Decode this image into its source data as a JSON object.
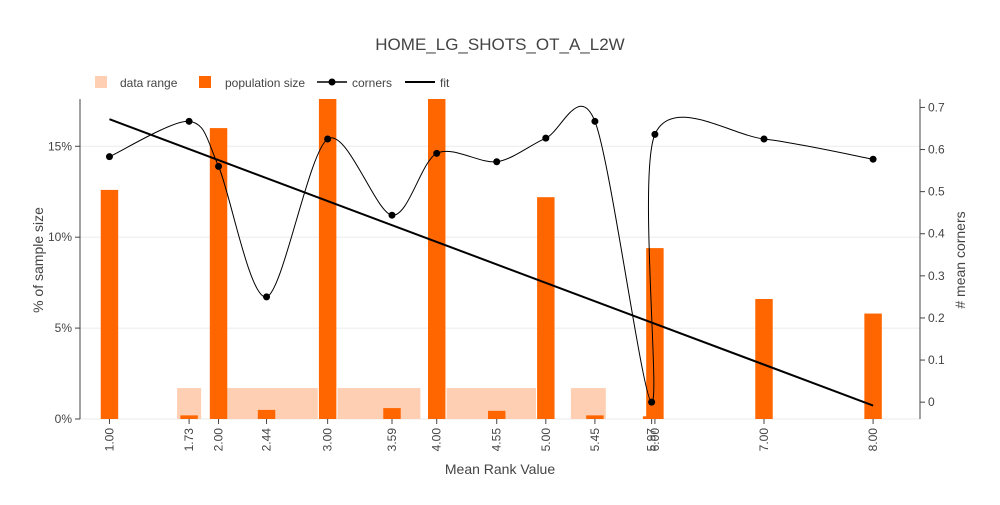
{
  "chart_data": {
    "type": "bar",
    "title": "HOME_LG_SHOTS_OT_A_L2W",
    "xlabel": "Mean Rank Value",
    "ylabel": "% of sample size",
    "y2label": "# mean corners",
    "xlim": [
      0.73,
      8.43
    ],
    "ylim": [
      0,
      17.6
    ],
    "y2lim": [
      -0.04,
      0.72
    ],
    "legend_position": "top-left",
    "colors": {
      "data_range": "#ffcfb3",
      "population": "#ff6600",
      "corners": "#000000",
      "fit": "#000000",
      "grid": "#ebebeb"
    },
    "legend": [
      {
        "key": "data_range",
        "label": "data range",
        "symbol": "square-light"
      },
      {
        "key": "population",
        "label": "population size",
        "symbol": "square"
      },
      {
        "key": "corners",
        "label": "corners",
        "symbol": "line-marker"
      },
      {
        "key": "fit",
        "label": "fit",
        "symbol": "line"
      }
    ],
    "yticks": [
      {
        "value": 0,
        "label": "0%"
      },
      {
        "value": 5,
        "label": "5%"
      },
      {
        "value": 10,
        "label": "10%"
      },
      {
        "value": 15,
        "label": "15%"
      }
    ],
    "y2ticks": [
      {
        "value": 0,
        "label": "0"
      },
      {
        "value": 0.1,
        "label": "0.1"
      },
      {
        "value": 0.2,
        "label": "0.2"
      },
      {
        "value": 0.3,
        "label": "0.3"
      },
      {
        "value": 0.4,
        "label": "0.4"
      },
      {
        "value": 0.5,
        "label": "0.5"
      },
      {
        "value": 0.6,
        "label": "0.6"
      },
      {
        "value": 0.7,
        "label": "0.7"
      }
    ],
    "xticks": [
      {
        "value": 1.0,
        "label": "1.00"
      },
      {
        "value": 1.73,
        "label": "1.73"
      },
      {
        "value": 2.0,
        "label": "2.00"
      },
      {
        "value": 2.44,
        "label": "2.44"
      },
      {
        "value": 3.0,
        "label": "3.00"
      },
      {
        "value": 3.59,
        "label": "3.59"
      },
      {
        "value": 4.0,
        "label": "4.00"
      },
      {
        "value": 4.55,
        "label": "4.55"
      },
      {
        "value": 5.0,
        "label": "5.00"
      },
      {
        "value": 5.45,
        "label": "5.45"
      },
      {
        "value": 5.97,
        "label": "5.97"
      },
      {
        "value": 6.0,
        "label": "6.00"
      },
      {
        "value": 7.0,
        "label": "7.00"
      },
      {
        "value": 8.0,
        "label": "8.00"
      }
    ],
    "data_range": [
      {
        "x0": 1.62,
        "x1": 1.84,
        "value": 1.7
      },
      {
        "x0": 2.07,
        "x1": 2.91,
        "value": 1.7
      },
      {
        "x0": 3.09,
        "x1": 3.85,
        "value": 1.7
      },
      {
        "x0": 4.09,
        "x1": 4.91,
        "value": 1.7
      },
      {
        "x0": 5.23,
        "x1": 5.55,
        "value": 1.7
      }
    ],
    "population": {
      "x": [
        1.0,
        1.73,
        2.0,
        2.44,
        3.0,
        3.59,
        4.0,
        4.55,
        5.0,
        5.45,
        5.97,
        6.0,
        7.0,
        8.0
      ],
      "values": [
        12.6,
        0.2,
        16.0,
        0.5,
        17.6,
        0.6,
        17.6,
        0.45,
        12.2,
        0.2,
        0.15,
        9.4,
        6.6,
        5.8
      ],
      "bar_width": 0.16
    },
    "corners": {
      "x": [
        1.0,
        1.73,
        2.0,
        2.44,
        3.0,
        3.59,
        4.0,
        4.55,
        5.0,
        5.45,
        5.97,
        6.0,
        7.0,
        8.0
      ],
      "values": [
        0.583,
        0.667,
        0.56,
        0.25,
        0.625,
        0.444,
        0.591,
        0.571,
        0.627,
        0.667,
        0.0,
        0.636,
        0.625,
        0.577
      ]
    },
    "fit": {
      "x": [
        1.0,
        8.0
      ],
      "values": [
        0.672,
        -0.008
      ]
    }
  }
}
